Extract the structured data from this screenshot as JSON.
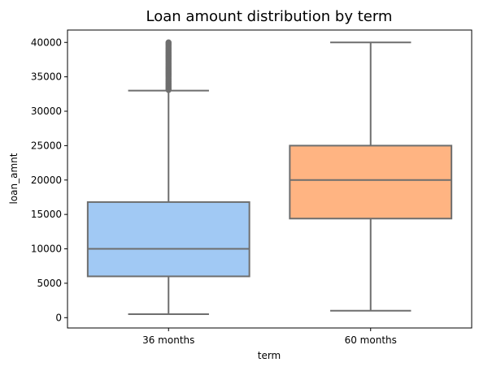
{
  "chart_data": {
    "type": "box",
    "title": "Loan amount distribution by term",
    "xlabel": "term",
    "ylabel": "loan_amnt",
    "categories": [
      "36 months",
      "60 months"
    ],
    "ylim": [
      -1500,
      41800
    ],
    "yticks": [
      0,
      5000,
      10000,
      15000,
      20000,
      25000,
      30000,
      35000,
      40000
    ],
    "boxes": [
      {
        "category": "36 months",
        "whisker_low": 500,
        "q1": 6000,
        "median": 10000,
        "q3": 16800,
        "whisker_high": 33000,
        "outliers_range": [
          33100,
          40000
        ],
        "color": "#a1c9f4"
      },
      {
        "category": "60 months",
        "whisker_low": 1000,
        "q1": 14400,
        "median": 20000,
        "q3": 25000,
        "whisker_high": 40000,
        "outliers_range": null,
        "color": "#ffb482"
      }
    ],
    "line_color": "#6e6e6e",
    "grid": false,
    "legend": "none"
  }
}
